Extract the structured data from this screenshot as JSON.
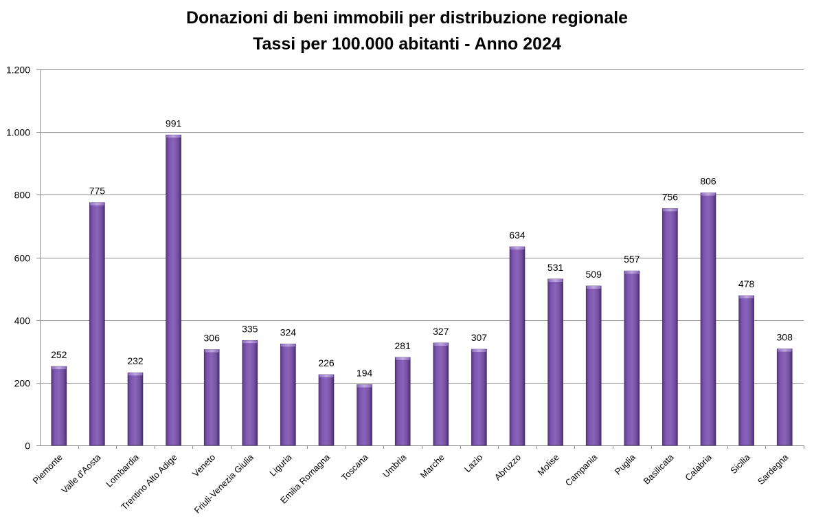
{
  "chart_data": {
    "type": "bar",
    "title": "Donazioni di beni immobili per distribuzione regionale",
    "subtitle": "Tassi per 100.000 abitanti - Anno 2024",
    "xlabel": "",
    "ylabel": "",
    "categories": [
      "Piemonte",
      "Valle d'Aosta",
      "Lombardia",
      "Trentino Alto Adige",
      "Veneto",
      "Friuli-Venezia Giulia",
      "Liguria",
      "Emilia Romagna",
      "Toscana",
      "Umbria",
      "Marche",
      "Lazio",
      "Abruzzo",
      "Molise",
      "Campania",
      "Puglia",
      "Basilicata",
      "Calabria",
      "Sicilia",
      "Sardegna"
    ],
    "values": [
      252,
      775,
      232,
      991,
      306,
      335,
      324,
      226,
      194,
      281,
      327,
      307,
      634,
      531,
      509,
      557,
      756,
      806,
      478,
      308
    ],
    "ylim": [
      0,
      1200
    ],
    "yticks": [
      0,
      200,
      400,
      600,
      800,
      1000,
      1200
    ],
    "ytick_labels": [
      "0",
      "200",
      "400",
      "600",
      "800",
      "1.000",
      "1.200"
    ],
    "grid": true,
    "legend": "none",
    "bar_color": "#7a52a8"
  }
}
